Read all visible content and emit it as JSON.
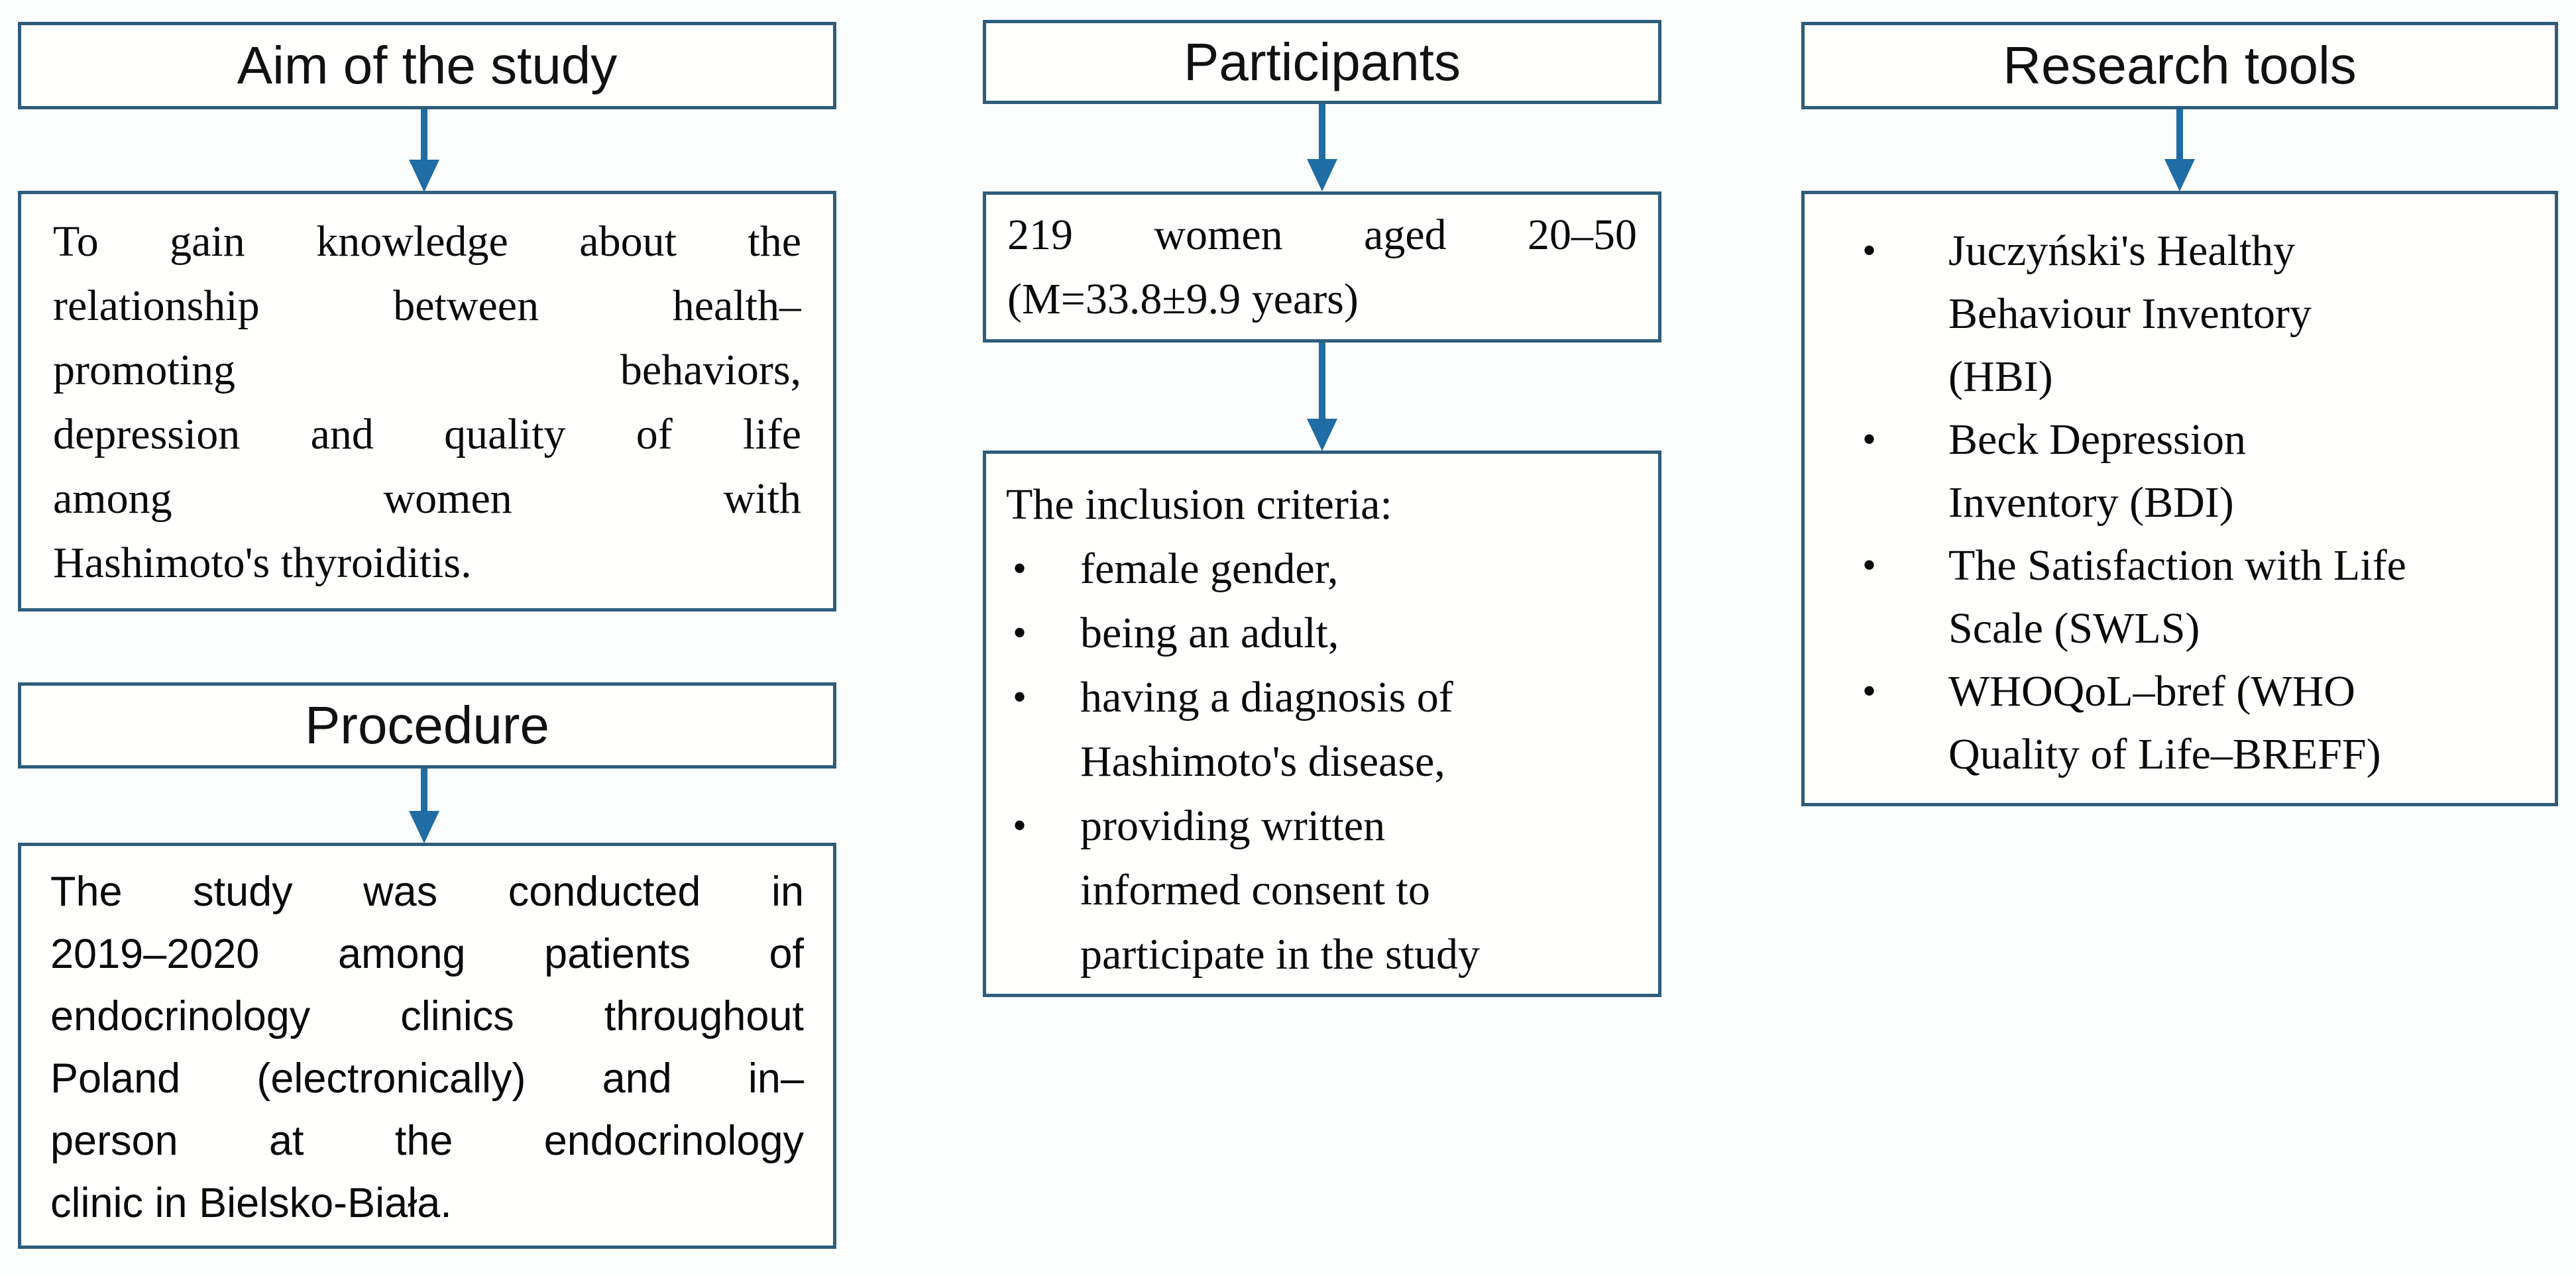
{
  "figure": {
    "type": "study-design-flowchart",
    "colors": {
      "box_border": "#2e5d7a",
      "arrow": "#1f6da4",
      "box_fill": "#fffffe",
      "text": "#0a0a0a"
    },
    "icons": {
      "bullet": "•",
      "arrow_down": "arrow-down"
    },
    "columns": {
      "aim": {
        "header": "Aim of the study",
        "body_lines": [
          "To gain knowledge about the",
          "relationship between health–",
          "promoting behaviors,",
          "depression and quality of life",
          "among women with",
          "Hashimoto's thyroiditis."
        ]
      },
      "procedure": {
        "header": "Procedure",
        "body_lines": [
          "The study was conducted in",
          "2019–2020 among patients of",
          "endocrinology clinics throughout",
          "Poland (electronically) and in–",
          "person at the endocrinology",
          "clinic in Bielsko-Biała."
        ]
      },
      "participants": {
        "header": "Participants",
        "sample_lines": [
          "219 women aged 20–50",
          "(M=33.8±9.9 years)"
        ],
        "criteria_title": "The inclusion criteria:",
        "criteria_items": [
          [
            "female gender,"
          ],
          [
            "being an adult,"
          ],
          [
            "having a diagnosis of",
            "Hashimoto's disease,"
          ],
          [
            "providing written",
            "informed consent to",
            "participate in the study"
          ]
        ]
      },
      "research_tools": {
        "header": "Research tools",
        "items": [
          [
            "Juczyński's Healthy",
            "Behaviour Inventory",
            "(HBI)"
          ],
          [
            "Beck Depression",
            "Inventory (BDI)"
          ],
          [
            "The Satisfaction with Life",
            "Scale (SWLS)"
          ],
          [
            "WHOQoL–bref (WHO",
            "Quality of Life–BREFF)"
          ]
        ]
      }
    }
  }
}
